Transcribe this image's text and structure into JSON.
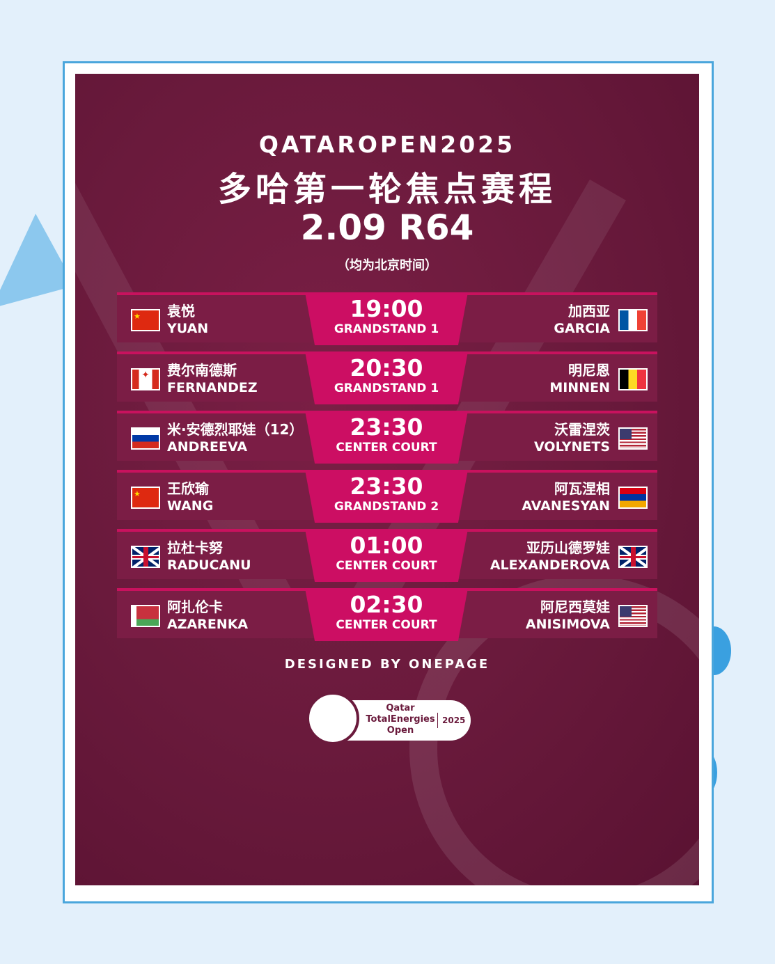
{
  "header": {
    "title_en": "QATAROPEN2025",
    "title_cn": "多哈第一轮焦点赛程",
    "date_round": "2.09 R64",
    "timezone_note": "（均为北京时间）"
  },
  "matches": [
    {
      "time": "19:00",
      "court": "GRANDSTAND 1",
      "left": {
        "cn": "袁悦",
        "en": "YUAN",
        "flag": "china"
      },
      "right": {
        "cn": "加西亚",
        "en": "GARCIA",
        "flag": "france"
      }
    },
    {
      "time": "20:30",
      "court": "GRANDSTAND 1",
      "left": {
        "cn": "费尔南德斯",
        "en": "FERNANDEZ",
        "flag": "canada"
      },
      "right": {
        "cn": "明尼恩",
        "en": "MINNEN",
        "flag": "belgium"
      }
    },
    {
      "time": "23:30",
      "court": "CENTER COURT",
      "left": {
        "cn": "米·安德烈耶娃（12）",
        "en": "ANDREEVA",
        "flag": "russia"
      },
      "right": {
        "cn": "沃雷涅茨",
        "en": "VOLYNETS",
        "flag": "usa"
      }
    },
    {
      "time": "23:30",
      "court": "GRANDSTAND 2",
      "left": {
        "cn": "王欣瑜",
        "en": "WANG",
        "flag": "china"
      },
      "right": {
        "cn": "阿瓦涅相",
        "en": "AVANESYAN",
        "flag": "armenia"
      }
    },
    {
      "time": "01:00",
      "court": "CENTER COURT",
      "left": {
        "cn": "拉杜卡努",
        "en": "RADUCANU",
        "flag": "uk"
      },
      "right": {
        "cn": "亚历山德罗娃",
        "en": "ALEXANDEROVA",
        "flag": "uk"
      }
    },
    {
      "time": "02:30",
      "court": "CENTER COURT",
      "left": {
        "cn": "阿扎伦卡",
        "en": "AZARENKA",
        "flag": "belarus"
      },
      "right": {
        "cn": "阿尼西莫娃",
        "en": "ANISIMOVA",
        "flag": "usa"
      }
    }
  ],
  "footer": {
    "credit": "DESIGNED BY ONEPAGE"
  },
  "logo": {
    "line1": "Qatar",
    "line2": "TotalEnergies",
    "line3": "Open",
    "year": "2025"
  },
  "colors": {
    "background": "#6a1a3c",
    "accent": "#cc0e63",
    "row": "#7b1d45",
    "frame": "#4aa6dc"
  }
}
